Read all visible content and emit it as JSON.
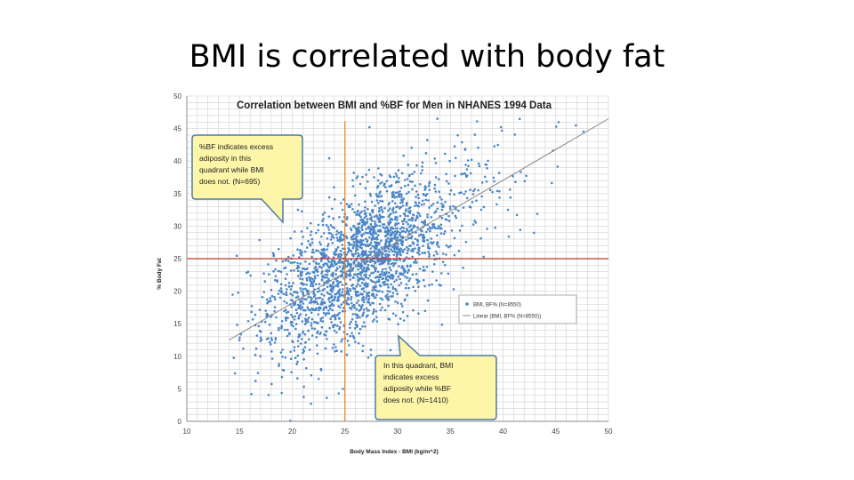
{
  "slide": {
    "title": "BMI is correlated with body fat"
  },
  "chart_data": {
    "type": "scatter",
    "title": "Correlation between BMI and %BF for Men in NHANES 1994 Data",
    "xlabel": "Body Mass Index - BMI (kg/m^2)",
    "ylabel": "% Body Fat",
    "xlim": [
      10,
      50
    ],
    "ylim": [
      0,
      50
    ],
    "x_ticks": [
      "10",
      "15",
      "20",
      "25",
      "30",
      "35",
      "40",
      "45",
      "50"
    ],
    "y_ticks": [
      "0",
      "5",
      "10",
      "15",
      "20",
      "25",
      "30",
      "35",
      "40",
      "45",
      "50"
    ],
    "grid": true,
    "series": [
      {
        "name": "BMI, BF% (N=8550)",
        "color": "#4a86c8",
        "cluster_center": [
          26,
          25
        ],
        "approx_x_range": [
          14,
          50
        ],
        "approx_y_range": [
          0,
          47
        ]
      },
      {
        "name": "Linear (BMI, BF% (N=8550))",
        "color": "#888888",
        "line": {
          "x": [
            14,
            50
          ],
          "y": [
            12.5,
            46.5
          ]
        }
      }
    ],
    "reference_lines": [
      {
        "axis": "x",
        "value": 25,
        "color": "#f07d1a"
      },
      {
        "axis": "y",
        "value": 25,
        "color": "#c0392b"
      }
    ],
    "legend_position": "right",
    "annotations": [
      {
        "text": "%BF indicates excess adiposity in this quadrant while BMI does not. (N=695)",
        "lines": [
          "%BF indicates excess",
          "adiposity in this",
          "quadrant while BMI",
          "does not. (N=695)"
        ]
      },
      {
        "text": "In this quadrant, BMI indicates excess adiposity while %BF does not. (N=1410)",
        "lines": [
          "In this quadrant, BMI",
          "indicates excess",
          "adiposity while %BF",
          "does not. (N=1410)"
        ]
      }
    ]
  }
}
